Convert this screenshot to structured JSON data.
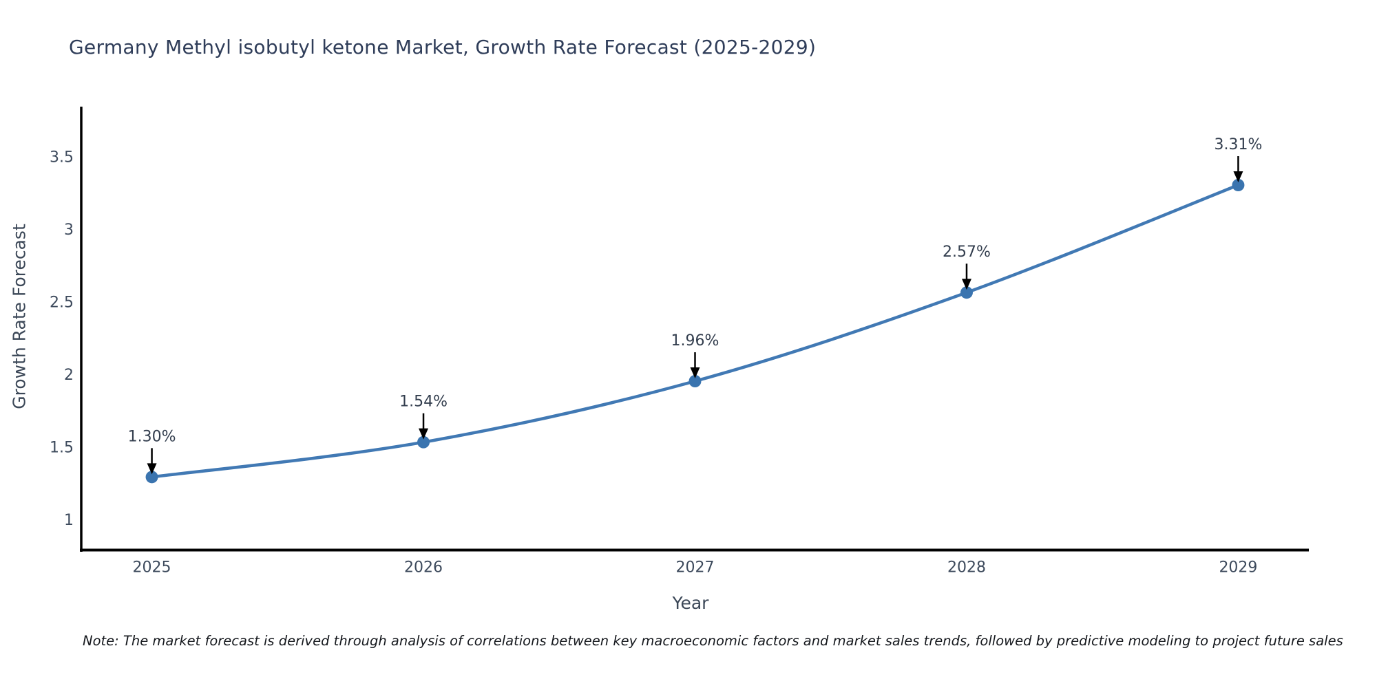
{
  "chart_data": {
    "type": "line",
    "title": "Germany Methyl isobutyl ketone Market, Growth Rate Forecast (2025-2029)",
    "xlabel": "Year",
    "ylabel": "Growth Rate Forecast",
    "x": [
      2025,
      2026,
      2027,
      2028,
      2029
    ],
    "series": [
      {
        "name": "Growth Rate Forecast (%)",
        "values": [
          1.3,
          1.54,
          1.96,
          2.57,
          3.31
        ]
      }
    ],
    "point_labels": [
      "1.30%",
      "1.54%",
      "1.96%",
      "2.57%",
      "3.31%"
    ],
    "xticks": [
      "2025",
      "2026",
      "2027",
      "2028",
      "2029"
    ],
    "yticks": [
      1,
      1.5,
      2,
      2.5,
      3,
      3.5
    ],
    "xlim": [
      2024.74,
      2029.26
    ],
    "ylim": [
      0.79,
      3.85
    ],
    "grid": false,
    "legend": "none",
    "marker_style": "circle",
    "annotation_arrows": "black arrows pointing down to each data point",
    "colors": {
      "line": "#4179b4",
      "marker": "#3a74af",
      "axis": "#000000",
      "arrow": "#000000",
      "title_text": "#2f3d59",
      "tick_text": "#3d4a5c",
      "axis_label_text": "#3b4757",
      "annotation_text": "#333e4e",
      "note_text": "#16191e",
      "background": "#ffffff"
    }
  },
  "note": "Note: The market forecast is derived through analysis of correlations between key macroeconomic factors and market sales trends, followed by predictive modeling to project future sales"
}
